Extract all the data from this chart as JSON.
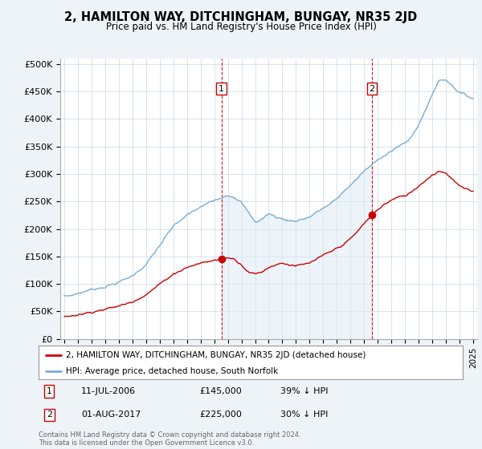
{
  "title": "2, HAMILTON WAY, DITCHINGHAM, BUNGAY, NR35 2JD",
  "subtitle": "Price paid vs. HM Land Registry's House Price Index (HPI)",
  "y_ticks": [
    0,
    50000,
    100000,
    150000,
    200000,
    250000,
    300000,
    350000,
    400000,
    450000,
    500000
  ],
  "y_tick_labels": [
    "£0",
    "£50K",
    "£100K",
    "£150K",
    "£200K",
    "£250K",
    "£300K",
    "£350K",
    "£400K",
    "£450K",
    "£500K"
  ],
  "hpi_color": "#7aadd4",
  "hpi_fill_color": "#ddeaf5",
  "price_color": "#cc0000",
  "marker1_date": "11-JUL-2006",
  "marker1_price": 145000,
  "marker1_year": 2006.53,
  "marker1_label": "39% ↓ HPI",
  "marker2_date": "01-AUG-2017",
  "marker2_price": 225000,
  "marker2_year": 2017.58,
  "marker2_label": "30% ↓ HPI",
  "legend_line1": "2, HAMILTON WAY, DITCHINGHAM, BUNGAY, NR35 2JD (detached house)",
  "legend_line2": "HPI: Average price, detached house, South Norfolk",
  "footnote": "Contains HM Land Registry data © Crown copyright and database right 2024.\nThis data is licensed under the Open Government Licence v3.0.",
  "bg_color": "#eef3f8",
  "plot_bg_color": "#ffffff",
  "grid_color": "#c8d8e8"
}
